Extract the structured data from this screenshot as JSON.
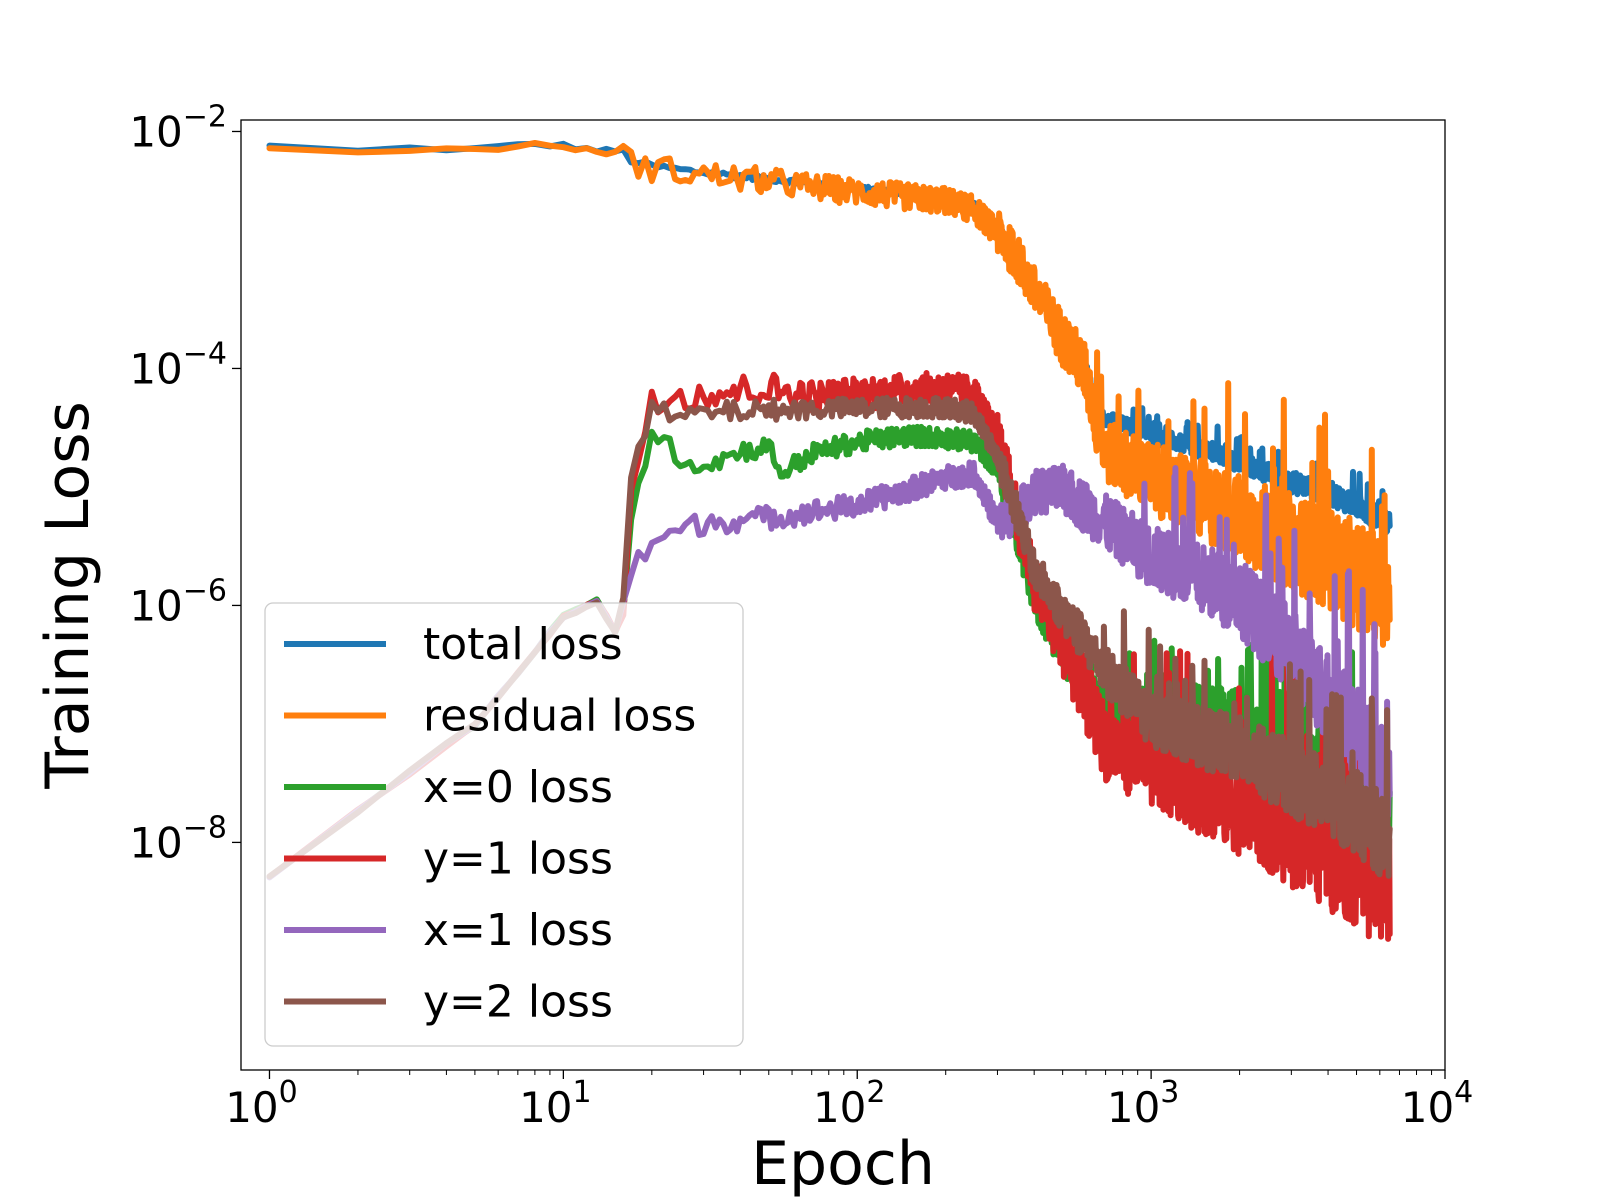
{
  "chart_data": {
    "type": "line",
    "title": "",
    "xlabel": "Epoch",
    "ylabel": "Training Loss",
    "xscale": "log",
    "yscale": "log",
    "xlim": [
      0.8,
      10000
    ],
    "ylim": [
      1.2e-10,
      0.0125
    ],
    "grid": false,
    "legend_position": "lower-left",
    "x_ticks": [
      {
        "value": 1,
        "base": "10",
        "exp": "0"
      },
      {
        "value": 10,
        "base": "10",
        "exp": "1"
      },
      {
        "value": 100,
        "base": "10",
        "exp": "2"
      },
      {
        "value": 1000,
        "base": "10",
        "exp": "3"
      },
      {
        "value": 10000,
        "base": "10",
        "exp": "4"
      }
    ],
    "y_ticks": [
      {
        "value": 0.01,
        "base": "10",
        "exp": "−2"
      },
      {
        "value": 0.0001,
        "base": "10",
        "exp": "−4"
      },
      {
        "value": 1e-06,
        "base": "10",
        "exp": "−6"
      },
      {
        "value": 1e-08,
        "base": "10",
        "exp": "−8"
      }
    ],
    "series": [
      {
        "name": "total loss",
        "color": "#1f77b4",
        "noise": 0.1,
        "points": [
          [
            1,
            0.0075
          ],
          [
            2,
            0.0068
          ],
          [
            3,
            0.0072
          ],
          [
            5,
            0.0071
          ],
          [
            8,
            0.0078
          ],
          [
            10,
            0.0076
          ],
          [
            13,
            0.0069
          ],
          [
            16,
            0.0068
          ],
          [
            17,
            0.0057
          ],
          [
            20,
            0.0051
          ],
          [
            30,
            0.0045
          ],
          [
            50,
            0.004
          ],
          [
            70,
            0.0036
          ],
          [
            100,
            0.0033
          ],
          [
            150,
            0.003
          ],
          [
            200,
            0.0028
          ],
          [
            250,
            0.0024
          ],
          [
            300,
            0.0015
          ],
          [
            350,
            0.0009
          ],
          [
            400,
            0.0005
          ],
          [
            450,
            0.0003
          ],
          [
            500,
            0.0002
          ],
          [
            550,
            0.00014
          ],
          [
            600,
            0.0001
          ],
          [
            650,
            5e-05
          ],
          [
            700,
            3.8e-05
          ],
          [
            1000,
            2.8e-05
          ],
          [
            2000,
            1.6e-05
          ],
          [
            3000,
            1.1e-05
          ],
          [
            4000,
            9e-06
          ],
          [
            5000,
            7e-06
          ],
          [
            6500,
            5e-06
          ]
        ]
      },
      {
        "name": "residual loss",
        "color": "#ff7f0e",
        "noise": 0.45,
        "points": [
          [
            1,
            0.0074
          ],
          [
            2,
            0.0066
          ],
          [
            3,
            0.0071
          ],
          [
            5,
            0.007
          ],
          [
            8,
            0.0077
          ],
          [
            10,
            0.0075
          ],
          [
            13,
            0.0067
          ],
          [
            16,
            0.0066
          ],
          [
            17,
            0.0055
          ],
          [
            20,
            0.0049
          ],
          [
            30,
            0.0043
          ],
          [
            50,
            0.0038
          ],
          [
            70,
            0.0034
          ],
          [
            100,
            0.0031
          ],
          [
            150,
            0.0028
          ],
          [
            200,
            0.0026
          ],
          [
            250,
            0.0022
          ],
          [
            300,
            0.0014
          ],
          [
            350,
            0.00085
          ],
          [
            400,
            0.00045
          ],
          [
            450,
            0.00028
          ],
          [
            500,
            0.00018
          ],
          [
            550,
            0.00013
          ],
          [
            600,
            9e-05
          ],
          [
            650,
            3.5e-05
          ],
          [
            700,
            2e-05
          ],
          [
            1000,
            1.2e-05
          ],
          [
            2000,
            5.5e-06
          ],
          [
            3000,
            3.5e-06
          ],
          [
            4000,
            2.5e-06
          ],
          [
            5000,
            1.8e-06
          ],
          [
            6500,
            1.2e-06
          ]
        ]
      },
      {
        "name": "x=0 loss",
        "color": "#2ca02c",
        "noise": 0.35,
        "points": [
          [
            1,
            5e-09
          ],
          [
            5,
            1e-07
          ],
          [
            10,
            8e-07
          ],
          [
            13,
            1.1e-06
          ],
          [
            15,
            6e-07
          ],
          [
            16,
            1e-06
          ],
          [
            17,
            6e-06
          ],
          [
            20,
            2.8e-05
          ],
          [
            25,
            1.8e-05
          ],
          [
            30,
            1.5e-05
          ],
          [
            40,
            2e-05
          ],
          [
            50,
            2.2e-05
          ],
          [
            55,
            1.3e-05
          ],
          [
            70,
            1.9e-05
          ],
          [
            100,
            2.4e-05
          ],
          [
            150,
            2.7e-05
          ],
          [
            200,
            2.6e-05
          ],
          [
            250,
            2.4e-05
          ],
          [
            300,
            1.4e-05
          ],
          [
            350,
            4e-06
          ],
          [
            400,
            1.2e-06
          ],
          [
            500,
            4e-07
          ],
          [
            700,
            1.3e-07
          ],
          [
            1000,
            1.6e-07
          ],
          [
            2000,
            1e-07
          ],
          [
            3000,
            6e-08
          ],
          [
            5000,
            3.5e-08
          ],
          [
            6500,
            2.5e-08
          ]
        ]
      },
      {
        "name": "y=1 loss",
        "color": "#d62728",
        "noise": 0.55,
        "points": [
          [
            1,
            5e-09
          ],
          [
            5,
            1e-07
          ],
          [
            10,
            8e-07
          ],
          [
            13,
            1.1e-06
          ],
          [
            15,
            6e-07
          ],
          [
            16,
            1e-06
          ],
          [
            17,
            1e-05
          ],
          [
            20,
            5.8e-05
          ],
          [
            30,
            6.2e-05
          ],
          [
            50,
            6.8e-05
          ],
          [
            70,
            5.8e-05
          ],
          [
            100,
            6.2e-05
          ],
          [
            150,
            6.6e-05
          ],
          [
            200,
            6.8e-05
          ],
          [
            250,
            6.2e-05
          ],
          [
            300,
            2.5e-05
          ],
          [
            350,
            6e-06
          ],
          [
            400,
            1.5e-06
          ],
          [
            500,
            5e-07
          ],
          [
            700,
            7e-08
          ],
          [
            1000,
            4.5e-08
          ],
          [
            2000,
            2.2e-08
          ],
          [
            3000,
            1.3e-08
          ],
          [
            5000,
            7e-09
          ],
          [
            6500,
            4e-09
          ]
        ]
      },
      {
        "name": "x=1 loss",
        "color": "#9467bd",
        "noise": 0.4,
        "points": [
          [
            1,
            5e-09
          ],
          [
            5,
            1e-07
          ],
          [
            10,
            8e-07
          ],
          [
            13,
            1.1e-06
          ],
          [
            15,
            6e-07
          ],
          [
            16,
            1e-06
          ],
          [
            17,
            1.8e-06
          ],
          [
            20,
            3.5e-06
          ],
          [
            30,
            5e-06
          ],
          [
            50,
            5.5e-06
          ],
          [
            100,
            7e-06
          ],
          [
            150,
            9.5e-06
          ],
          [
            200,
            1.2e-05
          ],
          [
            250,
            1.3e-05
          ],
          [
            300,
            5e-06
          ],
          [
            350,
            6e-06
          ],
          [
            400,
            9e-06
          ],
          [
            500,
            9.5e-06
          ],
          [
            700,
            5e-06
          ],
          [
            1000,
            2.6e-06
          ],
          [
            2000,
            1.2e-06
          ],
          [
            3000,
            4e-07
          ],
          [
            5000,
            9e-08
          ],
          [
            6500,
            3e-08
          ]
        ]
      },
      {
        "name": "y=2 loss",
        "color": "#8c564b",
        "noise": 0.35,
        "points": [
          [
            1,
            5e-09
          ],
          [
            5,
            1e-07
          ],
          [
            10,
            8e-07
          ],
          [
            13,
            1.1e-06
          ],
          [
            15,
            6e-07
          ],
          [
            16,
            1e-06
          ],
          [
            17,
            1.2e-05
          ],
          [
            20,
            4.5e-05
          ],
          [
            25,
            3.8e-05
          ],
          [
            30,
            4.2e-05
          ],
          [
            50,
            4.5e-05
          ],
          [
            100,
            4.6e-05
          ],
          [
            150,
            4.7e-05
          ],
          [
            200,
            4.7e-05
          ],
          [
            250,
            4.2e-05
          ],
          [
            300,
            1.8e-05
          ],
          [
            350,
            6e-06
          ],
          [
            400,
            2e-06
          ],
          [
            500,
            9e-07
          ],
          [
            700,
            2.8e-07
          ],
          [
            1000,
            1.1e-07
          ],
          [
            2000,
            6e-08
          ],
          [
            3000,
            3.5e-08
          ],
          [
            5000,
            1.8e-08
          ],
          [
            6500,
            1e-08
          ]
        ]
      }
    ]
  }
}
